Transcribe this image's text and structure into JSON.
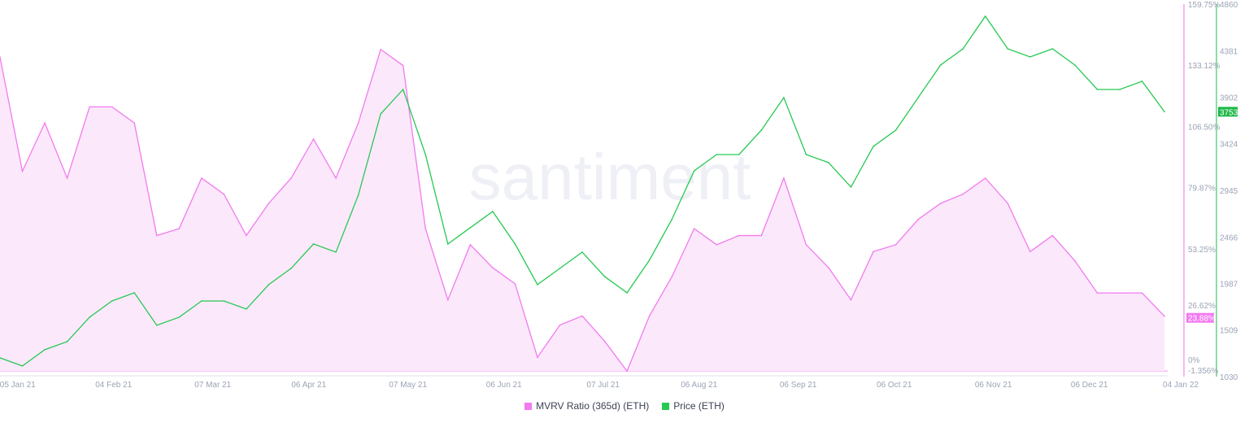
{
  "chart_data": {
    "type": "line",
    "title": "",
    "watermark": "santiment",
    "grid": false,
    "legend_placement": "bottom",
    "x": [
      "2021-01-01",
      "2021-01-08",
      "2021-01-15",
      "2021-01-22",
      "2021-01-29",
      "2021-02-05",
      "2021-02-12",
      "2021-02-19",
      "2021-02-26",
      "2021-03-05",
      "2021-03-12",
      "2021-03-19",
      "2021-03-26",
      "2021-04-02",
      "2021-04-09",
      "2021-04-16",
      "2021-04-23",
      "2021-04-30",
      "2021-05-07",
      "2021-05-14",
      "2021-05-21",
      "2021-05-28",
      "2021-06-04",
      "2021-06-11",
      "2021-06-18",
      "2021-06-25",
      "2021-07-02",
      "2021-07-09",
      "2021-07-16",
      "2021-07-23",
      "2021-07-30",
      "2021-08-06",
      "2021-08-13",
      "2021-08-20",
      "2021-08-27",
      "2021-09-03",
      "2021-09-10",
      "2021-09-17",
      "2021-09-24",
      "2021-10-01",
      "2021-10-08",
      "2021-10-15",
      "2021-10-22",
      "2021-10-29",
      "2021-11-05",
      "2021-11-12",
      "2021-11-19",
      "2021-11-26",
      "2021-12-03",
      "2021-12-10",
      "2021-12-17",
      "2021-12-24",
      "2021-12-31"
    ],
    "x_range": [
      "2021-01-01",
      "2022-01-01"
    ],
    "x_ticks": [
      {
        "date": "2021-01-05",
        "label": "05 Jan 21"
      },
      {
        "date": "2021-02-04",
        "label": "04 Feb 21"
      },
      {
        "date": "2021-03-07",
        "label": "07 Mar 21"
      },
      {
        "date": "2021-04-06",
        "label": "06 Apr 21"
      },
      {
        "date": "2021-05-07",
        "label": "07 May 21"
      },
      {
        "date": "2021-06-06",
        "label": "06 Jun 21"
      },
      {
        "date": "2021-07-07",
        "label": "07 Jul 21"
      },
      {
        "date": "2021-08-06",
        "label": "06 Aug 21"
      },
      {
        "date": "2021-09-06",
        "label": "06 Sep 21"
      },
      {
        "date": "2021-10-06",
        "label": "06 Oct 21"
      },
      {
        "date": "2021-11-06",
        "label": "06 Nov 21"
      },
      {
        "date": "2021-12-06",
        "label": "06 Dec 21"
      },
      {
        "date": "2022-01-04",
        "label": "04 Jan 22"
      }
    ],
    "series": [
      {
        "name": "MVRV Ratio (365d) (ETH)",
        "color": "#f27af0",
        "fill": "#fce8fb",
        "axis": "left-inner",
        "unit": "%",
        "last_value_label": "23.88%",
        "values": [
          136.7,
          87,
          108,
          84,
          115,
          115,
          108,
          59,
          62,
          84,
          77,
          59,
          73,
          84,
          101,
          84,
          108,
          140,
          133,
          62,
          31,
          55,
          45,
          38,
          6,
          20,
          24,
          13,
          0,
          24,
          41,
          62,
          55,
          59,
          59,
          84,
          55,
          45,
          31,
          52,
          55,
          66,
          73,
          77,
          84,
          73,
          52,
          59,
          48,
          34,
          34,
          34,
          23.88
        ]
      },
      {
        "name": "Price (ETH)",
        "color": "#26c953",
        "axis": "right",
        "last_value_label": "3753",
        "values": [
          1223,
          1140,
          1307,
          1390,
          1641,
          1808,
          1892,
          1558,
          1641,
          1808,
          1808,
          1725,
          1976,
          2143,
          2394,
          2310,
          2895,
          3731,
          3982,
          3313,
          2394,
          2561,
          2728,
          2394,
          1976,
          2143,
          2310,
          2059,
          1892,
          2227,
          2645,
          3146,
          3313,
          3313,
          3564,
          3898,
          3313,
          3230,
          2979,
          3397,
          3564,
          3898,
          4233,
          4400,
          4735,
          4400,
          4317,
          4400,
          4233,
          3982,
          3982,
          4066,
          3753
        ]
      }
    ],
    "y_axes": [
      {
        "series": "MVRV Ratio (365d) (ETH)",
        "range": [
          -1.356,
          159.75
        ],
        "tick_labels": [
          "159.75%",
          "133.12%",
          "106.50%",
          "79.87%",
          "53.25%",
          "26.62%",
          "0%",
          "-1.356%"
        ],
        "tick_values": [
          159.75,
          133.12,
          106.5,
          79.87,
          53.25,
          26.62,
          0,
          -1.356
        ]
      },
      {
        "series": "Price (ETH)",
        "range": [
          1030,
          4860
        ],
        "tick_labels": [
          "4860",
          "4381",
          "3902",
          "3424",
          "2945",
          "2466",
          "1987",
          "1509",
          "1030"
        ],
        "tick_values": [
          4860,
          4381,
          3902,
          3424,
          2945,
          2466,
          1987,
          1509,
          1030
        ]
      }
    ]
  }
}
